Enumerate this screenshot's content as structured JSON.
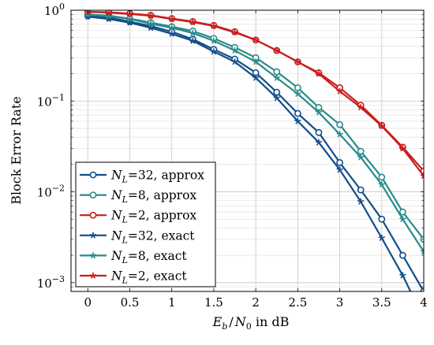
{
  "chart_data": {
    "type": "line",
    "title": "",
    "xlabel": "E_b / N_0 in dB",
    "xlabel_parts": {
      "e": "E",
      "e_sub": "b",
      "slash": "/",
      "n": "N",
      "n_sub": "0",
      "rest": " in dB"
    },
    "ylabel": "Block Error Rate",
    "xlim": [
      -0.2,
      4.0
    ],
    "ylim": [
      0.0008,
      1.0
    ],
    "yscale": "log",
    "grid": true,
    "legend_position": "bottom-left",
    "xticks": [
      0,
      0.5,
      1,
      1.5,
      2,
      2.5,
      3,
      3.5,
      4
    ],
    "xtick_labels": [
      "0",
      "0.5",
      "1",
      "1.5",
      "2",
      "2.5",
      "3",
      "3.5",
      "4"
    ],
    "yticks": [
      {
        "value": 1,
        "base": "10",
        "exp": "0"
      },
      {
        "value": 0.1,
        "base": "10",
        "exp": "−1"
      },
      {
        "value": 0.01,
        "base": "10",
        "exp": "−2"
      },
      {
        "value": 0.001,
        "base": "10",
        "exp": "−3"
      }
    ],
    "series": [
      {
        "name": "N_L=32, approx",
        "label_sym": "N",
        "label_sub": "L",
        "label_rest": "=32, approx",
        "color": "#104E8B",
        "marker": "circle",
        "x": [
          0,
          0.25,
          0.5,
          0.75,
          1,
          1.25,
          1.5,
          1.75,
          2,
          2.25,
          2.5,
          2.75,
          3,
          3.25,
          3.5,
          3.75,
          4
        ],
        "y": [
          0.87,
          0.83,
          0.75,
          0.67,
          0.58,
          0.48,
          0.37,
          0.29,
          0.205,
          0.125,
          0.073,
          0.045,
          0.021,
          0.0105,
          0.005,
          0.002,
          0.0008
        ]
      },
      {
        "name": "N_L=8, approx",
        "label_sym": "N",
        "label_sub": "L",
        "label_rest": "=8, approx",
        "color": "#2A8B8B",
        "marker": "circle",
        "x": [
          0,
          0.25,
          0.5,
          0.75,
          1,
          1.25,
          1.5,
          1.75,
          2,
          2.25,
          2.5,
          2.75,
          3,
          3.25,
          3.5,
          3.75,
          4
        ],
        "y": [
          0.9,
          0.87,
          0.81,
          0.73,
          0.66,
          0.59,
          0.49,
          0.39,
          0.3,
          0.21,
          0.14,
          0.085,
          0.055,
          0.028,
          0.0145,
          0.006,
          0.003
        ]
      },
      {
        "name": "N_L=2, approx",
        "label_sym": "N",
        "label_sub": "L",
        "label_rest": "=2, approx",
        "color": "#C81E1E",
        "marker": "circle",
        "x": [
          0,
          0.25,
          0.5,
          0.75,
          1,
          1.25,
          1.5,
          1.75,
          2,
          2.25,
          2.5,
          2.75,
          3,
          3.25,
          3.5,
          3.75,
          4
        ],
        "y": [
          0.96,
          0.95,
          0.92,
          0.88,
          0.81,
          0.75,
          0.68,
          0.58,
          0.47,
          0.36,
          0.27,
          0.205,
          0.14,
          0.09,
          0.054,
          0.031,
          0.017
        ]
      },
      {
        "name": "N_L=32, exact",
        "label_sym": "N",
        "label_sub": "L",
        "label_rest": "=32, exact",
        "color": "#104E8B",
        "marker": "star",
        "x": [
          0,
          0.25,
          0.5,
          0.75,
          1,
          1.25,
          1.5,
          1.75,
          2,
          2.25,
          2.5,
          2.75,
          3,
          3.25,
          3.5,
          3.75,
          4
        ],
        "y": [
          0.85,
          0.8,
          0.73,
          0.64,
          0.55,
          0.46,
          0.35,
          0.27,
          0.18,
          0.108,
          0.06,
          0.035,
          0.0175,
          0.0078,
          0.0031,
          0.0012,
          0.0004
        ]
      },
      {
        "name": "N_L=8, exact",
        "label_sym": "N",
        "label_sub": "L",
        "label_rest": "=8, exact",
        "color": "#2A8B8B",
        "marker": "star",
        "x": [
          0,
          0.25,
          0.5,
          0.75,
          1,
          1.25,
          1.5,
          1.75,
          2,
          2.25,
          2.5,
          2.75,
          3,
          3.25,
          3.5,
          3.75,
          4
        ],
        "y": [
          0.89,
          0.86,
          0.8,
          0.71,
          0.64,
          0.56,
          0.46,
          0.36,
          0.27,
          0.18,
          0.12,
          0.075,
          0.043,
          0.024,
          0.012,
          0.005,
          0.0022
        ]
      },
      {
        "name": "N_L=2, exact",
        "label_sym": "N",
        "label_sub": "L",
        "label_rest": "=2, exact",
        "color": "#C81E1E",
        "marker": "star",
        "x": [
          0,
          0.25,
          0.5,
          0.75,
          1,
          1.25,
          1.5,
          1.75,
          2,
          2.25,
          2.5,
          2.75,
          3,
          3.25,
          3.5,
          3.75,
          4
        ],
        "y": [
          0.96,
          0.94,
          0.91,
          0.87,
          0.8,
          0.74,
          0.67,
          0.57,
          0.47,
          0.36,
          0.27,
          0.2,
          0.128,
          0.085,
          0.053,
          0.03,
          0.015
        ]
      }
    ]
  }
}
